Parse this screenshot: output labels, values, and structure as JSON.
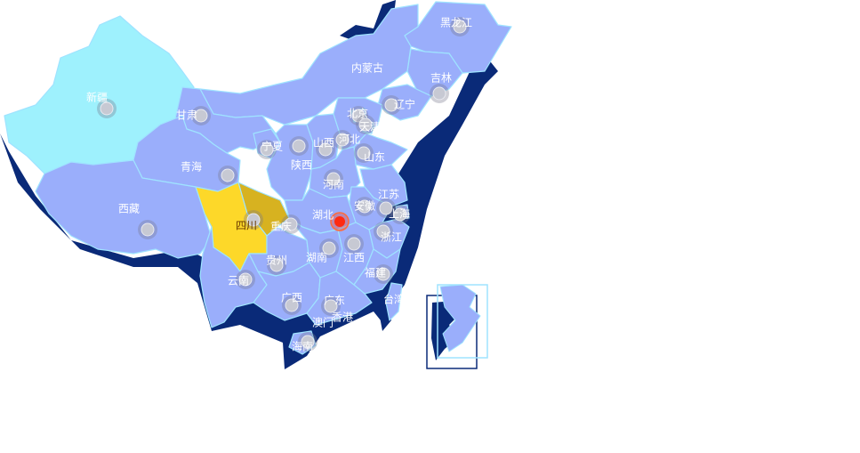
{
  "map": {
    "colors": {
      "default": "#9aaefb",
      "xinjiang": "#9ef1fd",
      "sichuan": "#fdd829",
      "chongqing": "#d7b220",
      "shadow": "#0a2a78",
      "border": "#9fe3ff",
      "hotspot": "#ff2a10",
      "marker": "#c7c9d3"
    },
    "labels": {
      "heilongjiang": "黑龙江",
      "neimenggu": "内蒙古",
      "jilin": "吉林",
      "liaoning": "辽宁",
      "xinjiang": "新疆",
      "gansu": "甘肃",
      "beijing": "北京",
      "tianjin": "天津",
      "hebei": "河北",
      "ningxia": "宁夏",
      "shanxi": "山西",
      "shandong": "山东",
      "qinghai": "青海",
      "shaanxi": "陕西",
      "henan": "河南",
      "jiangsu": "江苏",
      "anhui": "安徽",
      "shanghai": "上海",
      "xizang": "西藏",
      "sichuan": "四川",
      "hubei": "湖北",
      "chongqing": "重庆",
      "zhejiang": "浙江",
      "hunan": "湖南",
      "jiangxi": "江西",
      "guizhou": "贵州",
      "fujian": "福建",
      "yunnan": "云南",
      "guangxi": "广西",
      "guangdong": "广东",
      "taiwan": "台湾",
      "aomen": "澳门",
      "xianggang": "香港",
      "hainan": "海南"
    },
    "hotspot_province": "hubei"
  }
}
